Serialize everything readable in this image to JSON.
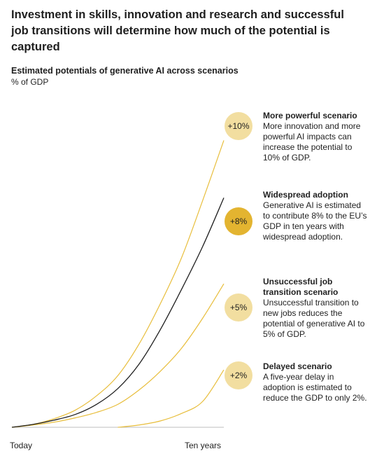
{
  "headline": "Investment in skills, innovation and research and successful job transitions will determine how much of the potential is captured",
  "chart_data": {
    "type": "line",
    "title": "Estimated potentials of generative AI across scenarios",
    "unit": "% of GDP",
    "x_labels": [
      "Today",
      "Ten years"
    ],
    "xlim": [
      0,
      10
    ],
    "ylim": [
      0,
      10.5
    ],
    "grid": false,
    "series": [
      {
        "name": "More powerful scenario",
        "color": "#e8be3c",
        "x": [
          0,
          1,
          2,
          3,
          4,
          5,
          6,
          7,
          8,
          9,
          10
        ],
        "values": [
          0,
          0.1,
          0.3,
          0.6,
          1.1,
          1.8,
          2.9,
          4.3,
          5.9,
          7.9,
          10
        ]
      },
      {
        "name": "Widespread adoption",
        "color": "#1f1f1f",
        "x": [
          0,
          1,
          2,
          3,
          4,
          5,
          6,
          7,
          8,
          9,
          10
        ],
        "values": [
          0,
          0.1,
          0.25,
          0.45,
          0.8,
          1.35,
          2.2,
          3.4,
          4.8,
          6.3,
          8
        ]
      },
      {
        "name": "Unsuccessful job transition scenario",
        "color": "#e8be3c",
        "x": [
          0,
          1,
          2,
          3,
          4,
          5,
          6,
          7,
          8,
          9,
          10
        ],
        "values": [
          0,
          0.08,
          0.18,
          0.33,
          0.52,
          0.8,
          1.3,
          1.95,
          2.75,
          3.8,
          5
        ]
      },
      {
        "name": "Delayed scenario",
        "color": "#e8be3c",
        "x": [
          5,
          6,
          7,
          8,
          9,
          10
        ],
        "values": [
          0,
          0.08,
          0.22,
          0.48,
          0.9,
          2
        ]
      }
    ]
  },
  "scenarios": [
    {
      "badge": "+10%",
      "badge_color": "#f2dea0",
      "title": "More powerful scenario",
      "desc": "More innovation and more powerful AI impacts can increase the potential to 10% of GDP."
    },
    {
      "badge": "+8%",
      "badge_color": "#e3b430",
      "title": "Widespread adoption",
      "desc": "Generative AI is estimated to contribute 8% to the EU’s GDP in ten years with widespread adoption."
    },
    {
      "badge": "+5%",
      "badge_color": "#f2dea0",
      "title": "Unsuccessful job transition scenario",
      "desc": "Unsuccessful transition to new jobs reduces the potential of generative AI to 5% of GDP."
    },
    {
      "badge": "+2%",
      "badge_color": "#f2dea0",
      "title": "Delayed scenario",
      "desc": "A five-year delay in adoption is estimated to reduce the GDP to only 2%."
    }
  ]
}
